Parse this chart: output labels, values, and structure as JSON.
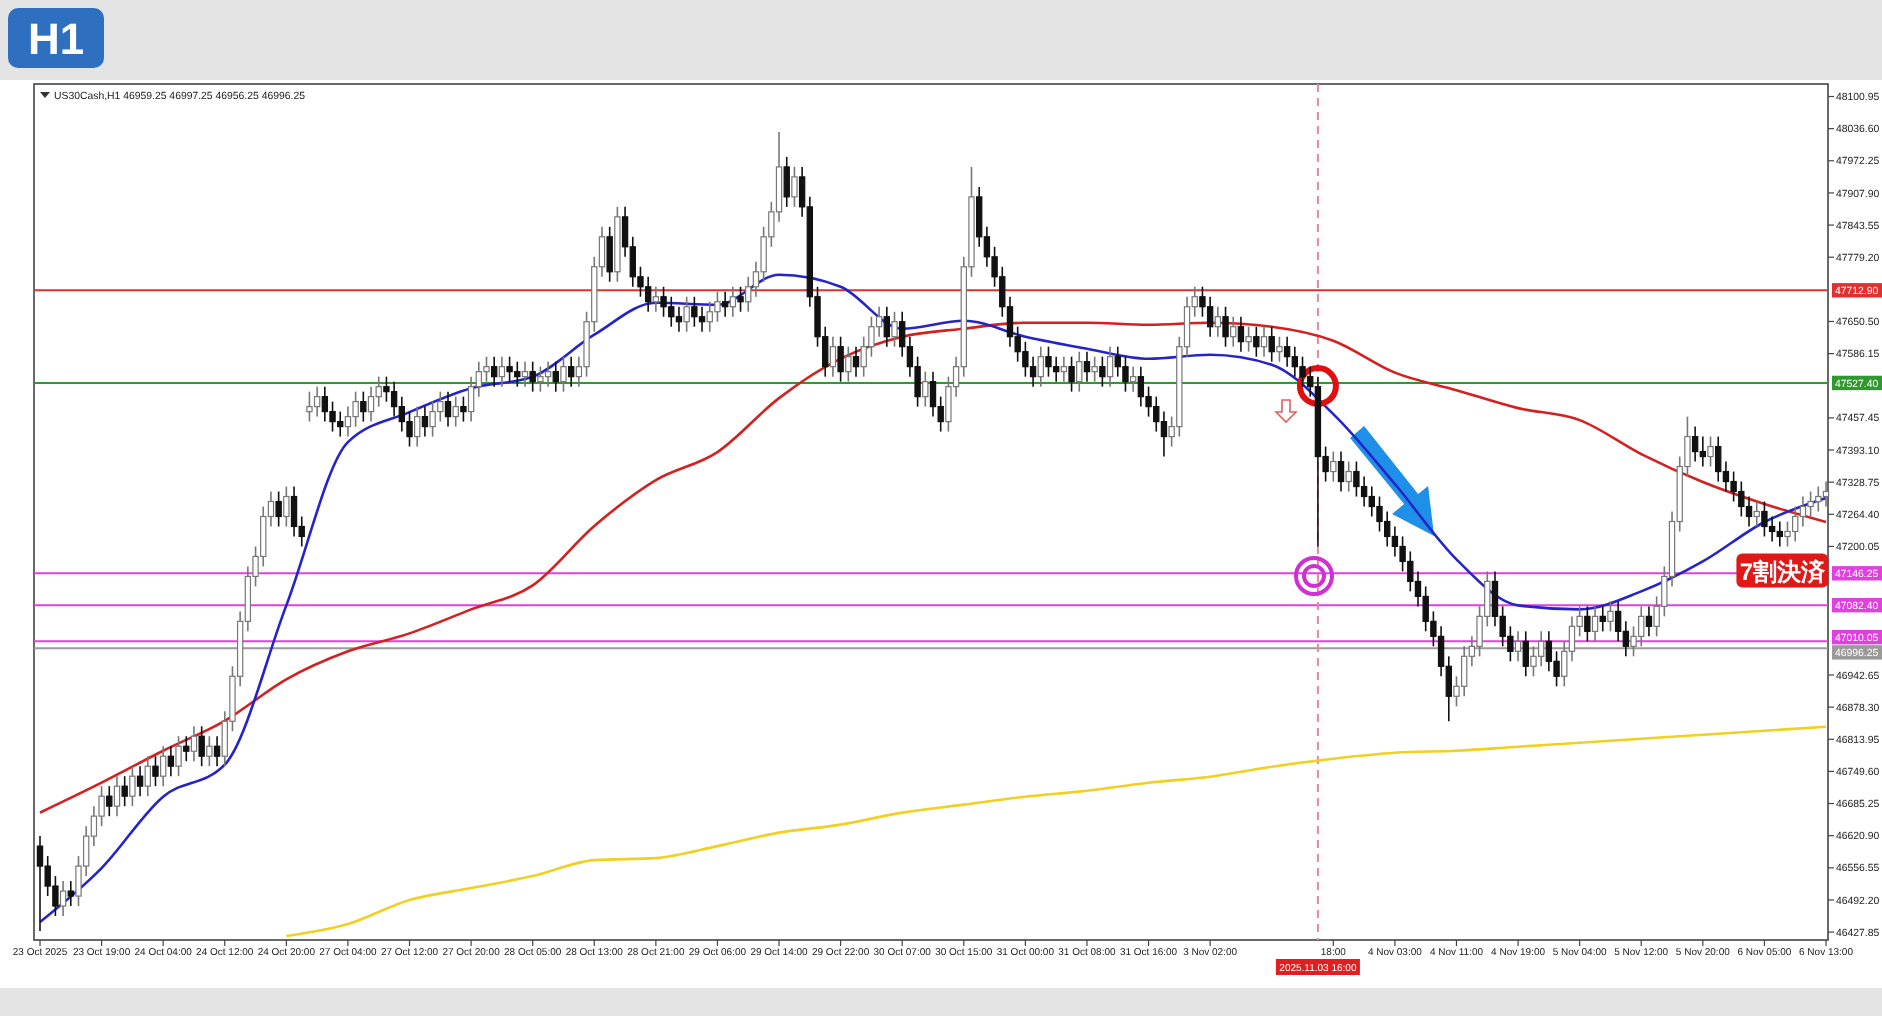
{
  "chart_data": {
    "type": "candlestick",
    "title": "H1",
    "annotations": [
      "US30Cash,H1 46959.25 46997.25 46956.25 46996.25",
      {
        "text": "7割決済",
        "x": "6 Nov 05:00",
        "y": 47150
      }
    ],
    "categories": [
      "23 Oct 2025",
      null,
      null,
      null,
      null,
      null,
      null,
      null,
      "23 Oct 19:00",
      null,
      null,
      null,
      null,
      null,
      null,
      null,
      "24 Oct 04:00",
      null,
      null,
      null,
      null,
      null,
      null,
      null,
      "24 Oct 12:00",
      null,
      null,
      null,
      null,
      null,
      null,
      null,
      "24 Oct 20:00",
      null,
      null,
      null,
      null,
      null,
      null,
      null,
      "27 Oct 04:00",
      null,
      null,
      null,
      null,
      null,
      null,
      null,
      "27 Oct 12:00",
      null,
      null,
      null,
      null,
      null,
      null,
      null,
      "27 Oct 20:00",
      null,
      null,
      null,
      null,
      null,
      null,
      null,
      "28 Oct 05:00",
      null,
      null,
      null,
      null,
      null,
      null,
      null,
      "28 Oct 13:00",
      null,
      null,
      null,
      null,
      null,
      null,
      null,
      "28 Oct 21:00",
      null,
      null,
      null,
      null,
      null,
      null,
      null,
      "29 Oct 06:00",
      null,
      null,
      null,
      null,
      null,
      null,
      null,
      "29 Oct 14:00",
      null,
      null,
      null,
      null,
      null,
      null,
      null,
      "29 Oct 22:00",
      null,
      null,
      null,
      null,
      null,
      null,
      null,
      "30 Oct 07:00",
      null,
      null,
      null,
      null,
      null,
      null,
      null,
      "30 Oct 15:00",
      null,
      null,
      null,
      null,
      null,
      null,
      null,
      "31 Oct 00:00",
      null,
      null,
      null,
      null,
      null,
      null,
      null,
      "31 Oct 08:00",
      null,
      null,
      null,
      null,
      null,
      null,
      null,
      "31 Oct 16:00",
      null,
      null,
      null,
      null,
      null,
      null,
      null,
      "3 Nov 02:00",
      null,
      null,
      null,
      null,
      null,
      null,
      null,
      null,
      null,
      null,
      null,
      null,
      null,
      "2025.11.03 16:00",
      null,
      "18:00",
      null,
      null,
      null,
      null,
      null,
      null,
      null,
      "4 Nov 03:00",
      null,
      null,
      null,
      null,
      null,
      null,
      null,
      "4 Nov 11:00",
      null,
      null,
      null,
      null,
      null,
      null,
      null,
      "4 Nov 19:00",
      null,
      null,
      null,
      null,
      null,
      null,
      null,
      "5 Nov 04:00",
      null,
      null,
      null,
      null,
      null,
      null,
      null,
      "5 Nov 12:00",
      null,
      null,
      null,
      null,
      null,
      null,
      null,
      "5 Nov 20:00",
      null,
      null,
      null,
      null,
      null,
      null,
      null,
      "6 Nov 05:00",
      null,
      null,
      null,
      null,
      null,
      null,
      null,
      "6 Nov 13:00"
    ],
    "ohlc": [
      [
        46600,
        46620,
        46430,
        46560
      ],
      [
        46560,
        46580,
        46500,
        46520
      ],
      [
        46520,
        46540,
        46460,
        46480
      ],
      [
        46480,
        46530,
        46460,
        46510
      ],
      [
        46510,
        46530,
        46480,
        46500
      ],
      [
        46500,
        46580,
        46480,
        46560
      ],
      [
        46560,
        46640,
        46540,
        46620
      ],
      [
        46620,
        46680,
        46600,
        46660
      ],
      [
        46660,
        46720,
        46640,
        46700
      ],
      [
        46700,
        46720,
        46660,
        46680
      ],
      [
        46680,
        46740,
        46660,
        46720
      ],
      [
        46720,
        46740,
        46680,
        46700
      ],
      [
        46700,
        46760,
        46680,
        46740
      ],
      [
        46740,
        46760,
        46700,
        46720
      ],
      [
        46720,
        46780,
        46700,
        46760
      ],
      [
        46760,
        46780,
        46720,
        46740
      ],
      [
        46740,
        46800,
        46720,
        46780
      ],
      [
        46780,
        46800,
        46740,
        46760
      ],
      [
        46760,
        46820,
        46740,
        46800
      ],
      [
        46800,
        46820,
        46770,
        46790
      ],
      [
        46790,
        46840,
        46770,
        46820
      ],
      [
        46820,
        46840,
        46760,
        46780
      ],
      [
        46780,
        46820,
        46760,
        46800
      ],
      [
        46800,
        46820,
        46760,
        46780
      ],
      [
        46780,
        46870,
        46760,
        46850
      ],
      [
        46850,
        46960,
        46830,
        46940
      ],
      [
        46940,
        47070,
        46920,
        47050
      ],
      [
        47050,
        47160,
        47030,
        47140
      ],
      [
        47140,
        47200,
        47120,
        47180
      ],
      [
        47180,
        47280,
        47160,
        47260
      ],
      [
        47260,
        47310,
        47240,
        47290
      ],
      [
        47290,
        47310,
        47240,
        47260
      ],
      [
        47260,
        47320,
        47240,
        47300
      ],
      [
        47300,
        47320,
        47220,
        47240
      ],
      [
        47240,
        47260,
        47200,
        47220
      ],
      [
        47470,
        47510,
        47450,
        47480
      ],
      [
        47480,
        47520,
        47460,
        47500
      ],
      [
        47500,
        47520,
        47450,
        47470
      ],
      [
        47470,
        47490,
        47430,
        47450
      ],
      [
        47450,
        47470,
        47420,
        47440
      ],
      [
        47440,
        47480,
        47420,
        47460
      ],
      [
        47460,
        47510,
        47440,
        47490
      ],
      [
        47490,
        47510,
        47450,
        47470
      ],
      [
        47470,
        47520,
        47450,
        47500
      ],
      [
        47500,
        47540,
        47480,
        47520
      ],
      [
        47520,
        47540,
        47490,
        47510
      ],
      [
        47510,
        47530,
        47460,
        47480
      ],
      [
        47480,
        47500,
        47430,
        47450
      ],
      [
        47450,
        47470,
        47400,
        47420
      ],
      [
        47420,
        47480,
        47400,
        47460
      ],
      [
        47460,
        47480,
        47420,
        47440
      ],
      [
        47440,
        47490,
        47420,
        47470
      ],
      [
        47470,
        47510,
        47450,
        47490
      ],
      [
        47490,
        47510,
        47440,
        47460
      ],
      [
        47460,
        47500,
        47440,
        47480
      ],
      [
        47480,
        47500,
        47450,
        47470
      ],
      [
        47470,
        47540,
        47450,
        47520
      ],
      [
        47520,
        47570,
        47500,
        47550
      ],
      [
        47550,
        47580,
        47530,
        47560
      ],
      [
        47560,
        47580,
        47520,
        47540
      ],
      [
        47540,
        47580,
        47520,
        47560
      ],
      [
        47560,
        47580,
        47530,
        47550
      ],
      [
        47550,
        47570,
        47520,
        47540
      ],
      [
        47540,
        47570,
        47520,
        47550
      ],
      [
        47550,
        47570,
        47510,
        47530
      ],
      [
        47530,
        47560,
        47510,
        47540
      ],
      [
        47540,
        47570,
        47520,
        47550
      ],
      [
        47550,
        47570,
        47510,
        47530
      ],
      [
        47530,
        47580,
        47510,
        47560
      ],
      [
        47560,
        47580,
        47520,
        47540
      ],
      [
        47540,
        47580,
        47520,
        47560
      ],
      [
        47560,
        47670,
        47540,
        47650
      ],
      [
        47650,
        47780,
        47630,
        47760
      ],
      [
        47760,
        47840,
        47740,
        47820
      ],
      [
        47820,
        47840,
        47730,
        47750
      ],
      [
        47750,
        47880,
        47730,
        47860
      ],
      [
        47860,
        47880,
        47780,
        47800
      ],
      [
        47800,
        47820,
        47720,
        47740
      ],
      [
        47740,
        47760,
        47700,
        47720
      ],
      [
        47720,
        47740,
        47670,
        47690
      ],
      [
        47690,
        47720,
        47670,
        47700
      ],
      [
        47700,
        47720,
        47660,
        47680
      ],
      [
        47680,
        47700,
        47640,
        47660
      ],
      [
        47660,
        47680,
        47630,
        47650
      ],
      [
        47650,
        47700,
        47630,
        47680
      ],
      [
        47680,
        47700,
        47640,
        47660
      ],
      [
        47660,
        47680,
        47630,
        47650
      ],
      [
        47650,
        47690,
        47630,
        47670
      ],
      [
        47670,
        47710,
        47650,
        47690
      ],
      [
        47690,
        47710,
        47660,
        47680
      ],
      [
        47680,
        47720,
        47660,
        47700
      ],
      [
        47700,
        47720,
        47670,
        47690
      ],
      [
        47690,
        47740,
        47670,
        47720
      ],
      [
        47720,
        47770,
        47700,
        47750
      ],
      [
        47750,
        47840,
        47730,
        47820
      ],
      [
        47820,
        47890,
        47800,
        47870
      ],
      [
        47870,
        48030,
        47850,
        47960
      ],
      [
        47960,
        47980,
        47880,
        47900
      ],
      [
        47900,
        47960,
        47880,
        47940
      ],
      [
        47940,
        47960,
        47860,
        47880
      ],
      [
        47880,
        47900,
        47680,
        47700
      ],
      [
        47700,
        47720,
        47600,
        47620
      ],
      [
        47620,
        47640,
        47540,
        47560
      ],
      [
        47560,
        47620,
        47540,
        47600
      ],
      [
        47600,
        47620,
        47530,
        47550
      ],
      [
        47550,
        47600,
        47530,
        47580
      ],
      [
        47580,
        47600,
        47540,
        47560
      ],
      [
        47560,
        47620,
        47540,
        47600
      ],
      [
        47600,
        47660,
        47580,
        47640
      ],
      [
        47640,
        47680,
        47620,
        47660
      ],
      [
        47660,
        47680,
        47600,
        47620
      ],
      [
        47620,
        47670,
        47600,
        47650
      ],
      [
        47650,
        47670,
        47580,
        47600
      ],
      [
        47600,
        47620,
        47540,
        47560
      ],
      [
        47560,
        47580,
        47480,
        47500
      ],
      [
        47500,
        47550,
        47480,
        47530
      ],
      [
        47530,
        47550,
        47460,
        47480
      ],
      [
        47480,
        47500,
        47430,
        47450
      ],
      [
        47450,
        47540,
        47430,
        47520
      ],
      [
        47520,
        47580,
        47500,
        47560
      ],
      [
        47560,
        47780,
        47540,
        47760
      ],
      [
        47760,
        47960,
        47740,
        47900
      ],
      [
        47900,
        47920,
        47800,
        47820
      ],
      [
        47820,
        47840,
        47760,
        47780
      ],
      [
        47780,
        47800,
        47720,
        47740
      ],
      [
        47740,
        47760,
        47660,
        47680
      ],
      [
        47680,
        47700,
        47600,
        47620
      ],
      [
        47620,
        47640,
        47570,
        47590
      ],
      [
        47590,
        47610,
        47540,
        47560
      ],
      [
        47560,
        47580,
        47520,
        47540
      ],
      [
        47540,
        47600,
        47520,
        47580
      ],
      [
        47580,
        47600,
        47540,
        47560
      ],
      [
        47560,
        47580,
        47530,
        47550
      ],
      [
        47550,
        47580,
        47530,
        47560
      ],
      [
        47560,
        47580,
        47510,
        47530
      ],
      [
        47530,
        47590,
        47510,
        47570
      ],
      [
        47570,
        47590,
        47530,
        47550
      ],
      [
        47550,
        47580,
        47530,
        47560
      ],
      [
        47560,
        47580,
        47520,
        47540
      ],
      [
        47540,
        47600,
        47520,
        47580
      ],
      [
        47580,
        47600,
        47540,
        47560
      ],
      [
        47560,
        47580,
        47510,
        47530
      ],
      [
        47530,
        47560,
        47510,
        47540
      ],
      [
        47540,
        47560,
        47480,
        47500
      ],
      [
        47500,
        47520,
        47460,
        47480
      ],
      [
        47480,
        47500,
        47430,
        47450
      ],
      [
        47450,
        47470,
        47380,
        47420
      ],
      [
        47420,
        47460,
        47400,
        47440
      ],
      [
        47440,
        47620,
        47420,
        47600
      ],
      [
        47600,
        47700,
        47580,
        47680
      ],
      [
        47680,
        47720,
        47660,
        47700
      ],
      [
        47700,
        47720,
        47660,
        47680
      ],
      [
        47680,
        47700,
        47620,
        47640
      ],
      [
        47640,
        47680,
        47620,
        47660
      ],
      [
        47660,
        47680,
        47600,
        47620
      ],
      [
        47620,
        47660,
        47600,
        47640
      ],
      [
        47640,
        47660,
        47590,
        47610
      ],
      [
        47610,
        47640,
        47590,
        47620
      ],
      [
        47620,
        47640,
        47580,
        47600
      ],
      [
        47600,
        47640,
        47580,
        47620
      ],
      [
        47620,
        47640,
        47570,
        47590
      ],
      [
        47590,
        47620,
        47570,
        47600
      ],
      [
        47600,
        47620,
        47560,
        47580
      ],
      [
        47580,
        47600,
        47540,
        47560
      ],
      [
        47560,
        47580,
        47520,
        47540
      ],
      [
        47540,
        47560,
        47500,
        47520
      ],
      [
        47520,
        47540,
        47200,
        47380
      ],
      [
        47380,
        47400,
        47330,
        47350
      ],
      [
        47350,
        47390,
        47330,
        47370
      ],
      [
        47370,
        47390,
        47310,
        47330
      ],
      [
        47330,
        47370,
        47310,
        47350
      ],
      [
        47350,
        47370,
        47300,
        47320
      ],
      [
        47320,
        47340,
        47280,
        47300
      ],
      [
        47300,
        47320,
        47260,
        47280
      ],
      [
        47280,
        47300,
        47230,
        47250
      ],
      [
        47250,
        47270,
        47200,
        47220
      ],
      [
        47220,
        47240,
        47180,
        47200
      ],
      [
        47200,
        47220,
        47150,
        47170
      ],
      [
        47170,
        47190,
        47110,
        47130
      ],
      [
        47130,
        47150,
        47080,
        47100
      ],
      [
        47100,
        47120,
        47030,
        47050
      ],
      [
        47050,
        47070,
        47000,
        47020
      ],
      [
        47020,
        47040,
        46940,
        46960
      ],
      [
        46960,
        46980,
        46850,
        46900
      ],
      [
        46900,
        46940,
        46880,
        46920
      ],
      [
        46920,
        47000,
        46900,
        46980
      ],
      [
        46980,
        47020,
        46960,
        47000
      ],
      [
        47000,
        47080,
        46980,
        47060
      ],
      [
        47060,
        47150,
        47040,
        47130
      ],
      [
        47130,
        47150,
        47040,
        47060
      ],
      [
        47060,
        47080,
        47000,
        47020
      ],
      [
        47020,
        47040,
        46970,
        46990
      ],
      [
        46990,
        47030,
        46970,
        47010
      ],
      [
        47010,
        47030,
        46940,
        46960
      ],
      [
        46960,
        47000,
        46940,
        46980
      ],
      [
        46980,
        47030,
        46960,
        47010
      ],
      [
        47010,
        47030,
        46950,
        46970
      ],
      [
        46970,
        46990,
        46920,
        46940
      ],
      [
        46940,
        47010,
        46920,
        46990
      ],
      [
        46990,
        47060,
        46970,
        47040
      ],
      [
        47040,
        47080,
        47020,
        47060
      ],
      [
        47060,
        47080,
        47010,
        47030
      ],
      [
        47030,
        47080,
        47010,
        47060
      ],
      [
        47060,
        47080,
        47030,
        47050
      ],
      [
        47050,
        47090,
        47030,
        47070
      ],
      [
        47070,
        47090,
        47010,
        47030
      ],
      [
        47030,
        47050,
        46980,
        47000
      ],
      [
        47000,
        47040,
        46980,
        47020
      ],
      [
        47020,
        47080,
        47000,
        47060
      ],
      [
        47060,
        47080,
        47020,
        47040
      ],
      [
        47040,
        47100,
        47020,
        47080
      ],
      [
        47080,
        47160,
        47060,
        47140
      ],
      [
        47140,
        47270,
        47120,
        47250
      ],
      [
        47250,
        47380,
        47230,
        47360
      ],
      [
        47360,
        47460,
        47340,
        47420
      ],
      [
        47420,
        47440,
        47370,
        47390
      ],
      [
        47390,
        47420,
        47360,
        47380
      ],
      [
        47380,
        47420,
        47360,
        47400
      ],
      [
        47400,
        47420,
        47330,
        47350
      ],
      [
        47350,
        47370,
        47310,
        47330
      ],
      [
        47330,
        47350,
        47290,
        47310
      ],
      [
        47310,
        47330,
        47260,
        47280
      ],
      [
        47280,
        47300,
        47240,
        47260
      ],
      [
        47260,
        47290,
        47240,
        47270
      ],
      [
        47270,
        47290,
        47220,
        47240
      ],
      [
        47240,
        47260,
        47210,
        47230
      ],
      [
        47230,
        47250,
        47200,
        47220
      ],
      [
        47220,
        47250,
        47200,
        47230
      ],
      [
        47230,
        47280,
        47210,
        47260
      ],
      [
        47260,
        47300,
        47240,
        47280
      ],
      [
        47280,
        47310,
        47260,
        47290
      ],
      [
        47290,
        47320,
        47270,
        47300
      ],
      [
        47300,
        47330,
        47280,
        47310
      ]
    ],
    "series": [
      {
        "type": "line",
        "color": "#f0d020",
        "values": [
          null,
          null,
          null,
          null,
          null,
          null,
          null,
          null,
          null,
          null,
          null,
          null,
          null,
          null,
          null,
          null,
          null,
          null,
          null,
          null,
          null,
          null,
          null,
          null,
          null,
          null,
          null,
          null,
          null,
          null,
          null,
          null,
          46420,
          null,
          null,
          null,
          null,
          null,
          null,
          null,
          46444,
          null,
          null,
          null,
          null,
          null,
          null,
          null,
          46492,
          null,
          null,
          null,
          null,
          null,
          null,
          null,
          46516,
          null,
          null,
          null,
          null,
          null,
          null,
          null,
          46540,
          null,
          null,
          null,
          null,
          null,
          null,
          null,
          46572,
          null,
          null,
          null,
          null,
          null,
          null,
          null,
          46576,
          null,
          null,
          null,
          null,
          null,
          null,
          null,
          46600,
          null,
          null,
          null,
          null,
          null,
          null,
          null,
          46627,
          null,
          null,
          null,
          null,
          null,
          null,
          null,
          46643,
          null,
          null,
          null,
          null,
          null,
          null,
          null,
          46667,
          null,
          null,
          null,
          null,
          null,
          null,
          null,
          46683,
          null,
          null,
          null,
          null,
          null,
          null,
          null,
          46699,
          null,
          null,
          null,
          null,
          null,
          null,
          null,
          46711,
          null,
          null,
          null,
          null,
          null,
          null,
          null,
          46727,
          null,
          null,
          null,
          null,
          null,
          null,
          null,
          46739,
          null,
          null,
          null,
          null,
          null,
          null,
          null,
          46759,
          null,
          null,
          null,
          null,
          null,
          null,
          null,
          46775,
          null,
          null,
          null,
          null,
          null,
          null,
          null,
          46787,
          null,
          null,
          null,
          null,
          null,
          null,
          null,
          46791,
          null,
          null,
          null,
          null,
          null,
          null,
          null,
          46799,
          null,
          null,
          null,
          null,
          null,
          null,
          null,
          46807,
          null,
          null,
          null,
          null,
          null,
          null,
          null,
          46815,
          null,
          null,
          null,
          null,
          null,
          null,
          null,
          46823,
          null,
          null,
          null,
          null,
          null,
          null,
          null,
          46831,
          null,
          null,
          null,
          null,
          null,
          null,
          null,
          46839
        ]
      },
      {
        "type": "line",
        "color": "#d42020",
        "values": [
          46667,
          null,
          null,
          null,
          null,
          null,
          null,
          null,
          46727,
          null,
          null,
          null,
          null,
          null,
          null,
          null,
          46791,
          null,
          null,
          null,
          null,
          null,
          null,
          null,
          46851,
          null,
          null,
          null,
          null,
          null,
          null,
          null,
          46934,
          null,
          null,
          null,
          null,
          null,
          null,
          null,
          46990,
          null,
          null,
          null,
          null,
          null,
          null,
          null,
          47026,
          null,
          null,
          null,
          null,
          null,
          null,
          null,
          47074,
          null,
          null,
          null,
          null,
          null,
          null,
          null,
          47122,
          null,
          null,
          null,
          null,
          null,
          null,
          null,
          47241,
          null,
          null,
          null,
          null,
          null,
          null,
          null,
          47333,
          null,
          null,
          null,
          null,
          null,
          null,
          null,
          47389,
          null,
          null,
          null,
          null,
          null,
          null,
          null,
          47497,
          null,
          null,
          null,
          null,
          null,
          null,
          null,
          47576,
          null,
          null,
          null,
          null,
          null,
          null,
          null,
          47620,
          null,
          null,
          null,
          null,
          null,
          null,
          null,
          47636,
          null,
          null,
          null,
          null,
          null,
          null,
          null,
          47648,
          null,
          null,
          null,
          null,
          null,
          null,
          null,
          47648,
          null,
          null,
          null,
          null,
          null,
          null,
          null,
          47644,
          null,
          null,
          null,
          null,
          null,
          null,
          null,
          47648,
          null,
          null,
          null,
          null,
          null,
          null,
          null,
          47640,
          null,
          null,
          null,
          null,
          null,
          null,
          null,
          47612,
          null,
          null,
          null,
          null,
          null,
          null,
          null,
          47548,
          null,
          null,
          null,
          null,
          null,
          null,
          null,
          47513,
          null,
          null,
          null,
          null,
          null,
          null,
          null,
          47477,
          null,
          null,
          null,
          null,
          null,
          null,
          null,
          47453,
          null,
          null,
          null,
          null,
          null,
          null,
          null,
          47385,
          null,
          null,
          null,
          null,
          null,
          null,
          null,
          47329,
          null,
          null,
          null,
          null,
          null,
          null,
          null,
          47285,
          null,
          null,
          null,
          null,
          null,
          null,
          null,
          47249
        ]
      },
      {
        "type": "line",
        "color": "#2424c8",
        "values": [
          46448,
          null,
          null,
          null,
          null,
          null,
          null,
          null,
          46556,
          null,
          null,
          null,
          null,
          null,
          null,
          null,
          46699,
          null,
          null,
          null,
          null,
          null,
          null,
          null,
          46763,
          null,
          null,
          null,
          null,
          null,
          null,
          null,
          47082,
          null,
          null,
          null,
          null,
          null,
          null,
          null,
          47409,
          null,
          null,
          null,
          null,
          null,
          null,
          null,
          47469,
          null,
          null,
          null,
          null,
          null,
          null,
          null,
          47517,
          null,
          null,
          null,
          null,
          null,
          null,
          null,
          47540,
          null,
          null,
          null,
          null,
          null,
          null,
          null,
          47624,
          null,
          null,
          null,
          null,
          null,
          null,
          null,
          47688,
          null,
          null,
          null,
          null,
          null,
          null,
          null,
          47684,
          null,
          null,
          null,
          null,
          null,
          null,
          null,
          47744,
          null,
          null,
          null,
          null,
          null,
          null,
          null,
          47720,
          null,
          null,
          null,
          null,
          null,
          null,
          null,
          47636,
          null,
          null,
          null,
          null,
          null,
          null,
          null,
          47652,
          null,
          null,
          null,
          null,
          null,
          null,
          null,
          47620,
          null,
          null,
          null,
          null,
          null,
          null,
          null,
          47596,
          null,
          null,
          null,
          null,
          null,
          null,
          null,
          47576,
          null,
          null,
          null,
          null,
          null,
          null,
          null,
          47584,
          null,
          null,
          null,
          null,
          null,
          null,
          null,
          47564,
          null,
          null,
          null,
          null,
          null,
          null,
          null,
          47465,
          null,
          null,
          null,
          null,
          null,
          null,
          null,
          47325,
          null,
          null,
          null,
          null,
          null,
          null,
          null,
          47174,
          null,
          null,
          null,
          null,
          null,
          null,
          null,
          47082,
          null,
          null,
          null,
          null,
          null,
          null,
          null,
          47074,
          null,
          null,
          null,
          null,
          null,
          null,
          null,
          47110,
          null,
          null,
          null,
          null,
          null,
          null,
          null,
          47170,
          null,
          null,
          null,
          null,
          null,
          null,
          null,
          47249,
          null,
          null,
          null,
          null,
          null,
          null,
          null,
          47297
        ]
      }
    ],
    "ylim": [
      46412,
      48126
    ],
    "yticks": [
      48100.95,
      {
        "value": 48036.6,
        "label": "48036.60"
      },
      47972.25,
      {
        "value": 47907.9,
        "label": "47907.90"
      },
      47843.55,
      {
        "value": 47779.2,
        "label": "47779.20"
      },
      {
        "value": 47650.5,
        "label": "47650.50"
      },
      47586.15,
      47457.45,
      {
        "value": 47393.1,
        "label": "47393.10"
      },
      47328.75,
      {
        "value": 47264.4,
        "label": "47264.40"
      },
      47200.05,
      46942.65,
      {
        "value": 46878.3,
        "label": "46878.30"
      },
      46813.95,
      {
        "value": 46749.6,
        "label": "46749.60"
      },
      46685.25,
      {
        "value": 46620.9,
        "label": "46620.90"
      },
      46556.55,
      {
        "value": 46492.2,
        "label": "46492.20"
      },
      46427.85
    ],
    "ref_lines": [
      {
        "axis": "y",
        "value": 47712.9,
        "label": "47712.90",
        "color": "#e03030",
        "line_style": "solid"
      },
      {
        "axis": "y",
        "value": 47527.4,
        "label": "47527.40",
        "color": "#2e9a2e",
        "line_style": "solid"
      },
      {
        "axis": "y",
        "value": 47146.25,
        "label": "47146.25",
        "color": "#e040e0",
        "line_style": "solid"
      },
      {
        "axis": "y",
        "value": 47082.4,
        "label": "47082.40",
        "color": "#e040e0",
        "line_style": "solid"
      },
      {
        "axis": "y",
        "value": 47010.05,
        "label": "47010.05",
        "color": "#e040e0",
        "line_style": "solid"
      },
      {
        "axis": "y",
        "value": 46996.25,
        "label": "46996.25",
        "color": "#9a9a9a",
        "line_style": "solid"
      },
      {
        "axis": "x",
        "value": "2025.11.03 16:00",
        "color": "#e88898",
        "line_style": "dashed"
      }
    ]
  }
}
